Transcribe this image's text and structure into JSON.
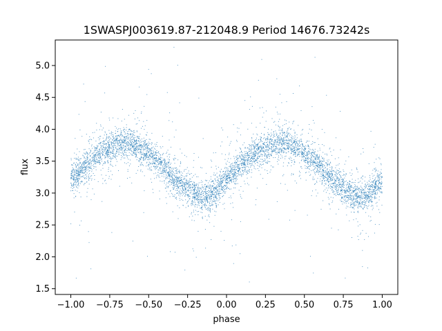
{
  "chart_data": {
    "type": "scatter",
    "title": "1SWASPJ003619.87-212048.9 Period 14676.73242s",
    "xlabel": "phase",
    "ylabel": "flux",
    "xlim": [
      -1.1,
      1.1
    ],
    "ylim": [
      1.41,
      5.4
    ],
    "xticks": [
      -1.0,
      -0.75,
      -0.5,
      -0.25,
      0.0,
      0.25,
      0.5,
      0.75,
      1.0
    ],
    "xtick_labels": [
      "−1.00",
      "−0.75",
      "−0.50",
      "−0.25",
      "0.00",
      "0.25",
      "0.50",
      "0.75",
      "1.00"
    ],
    "yticks": [
      1.5,
      2.0,
      2.5,
      3.0,
      3.5,
      4.0,
      4.5,
      5.0
    ],
    "ytick_labels": [
      "1.5",
      "2.0",
      "2.5",
      "3.0",
      "3.5",
      "4.0",
      "4.5",
      "5.0"
    ],
    "grid": false,
    "marker_color": "#1f77b4",
    "series": [
      {
        "x": [
          -1.0,
          -0.9,
          -0.8,
          -0.7,
          -0.65,
          -0.6,
          -0.5,
          -0.4,
          -0.3,
          -0.2,
          -0.15,
          -0.1,
          0.0,
          0.1,
          0.2,
          0.3,
          0.35,
          0.4,
          0.5,
          0.6,
          0.7,
          0.8,
          0.85,
          0.9,
          1.0
        ],
        "values": [
          3.2,
          3.45,
          3.65,
          3.78,
          3.8,
          3.77,
          3.6,
          3.4,
          3.15,
          2.98,
          2.93,
          2.97,
          3.2,
          3.45,
          3.65,
          3.78,
          3.8,
          3.77,
          3.6,
          3.4,
          3.15,
          2.98,
          2.93,
          2.97,
          3.2
        ]
      }
    ]
  }
}
